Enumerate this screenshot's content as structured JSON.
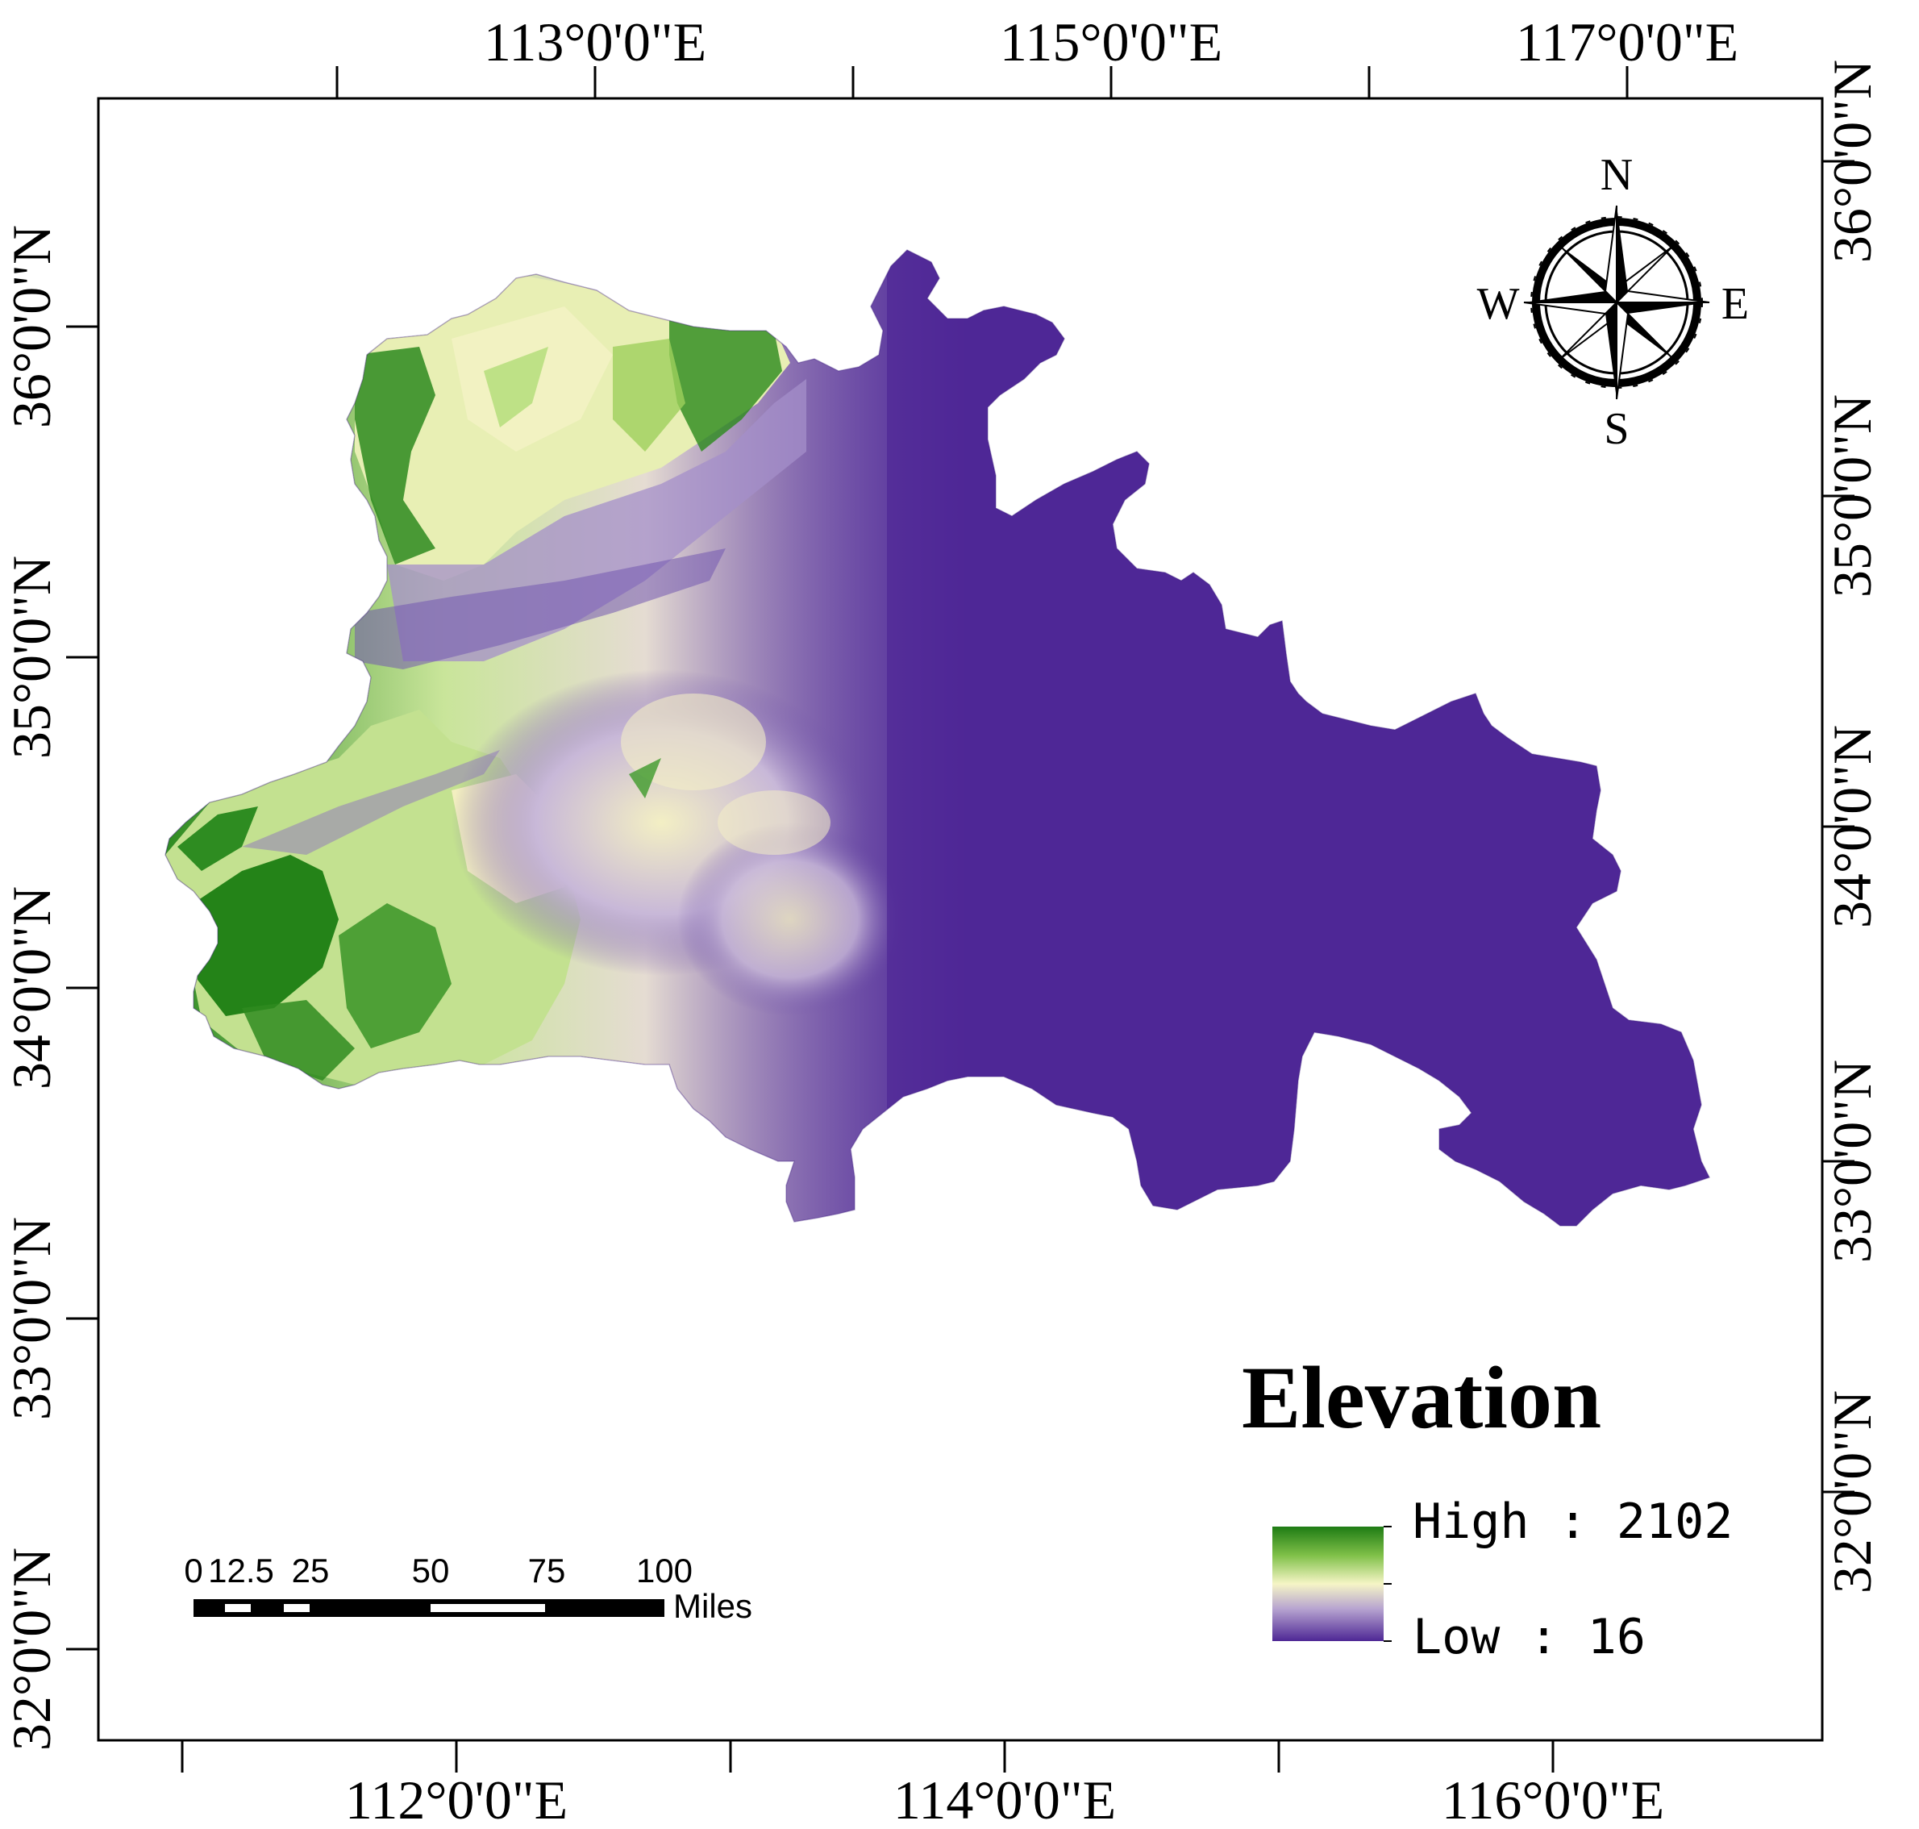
{
  "map": {
    "axis_labels": {
      "top": [
        "113°0'0\"E",
        "115°0'0\"E",
        "117°0'0\"E"
      ],
      "bottom": [
        "112°0'0\"E",
        "114°0'0\"E",
        "116°0'0\"E"
      ],
      "left": [
        "36°0'0\"N",
        "35°0'0\"N",
        "34°0'0\"N",
        "33°0'0\"N",
        "32°0'0\"N"
      ],
      "right": [
        "36°0'0\"N",
        "35°0'0\"N",
        "34°0'0\"N",
        "33°0'0\"N",
        "32°0'0\"N"
      ]
    },
    "compass": {
      "n": "N",
      "s": "S",
      "e": "E",
      "w": "W"
    },
    "legend": {
      "title": "Elevation",
      "high_label": "High : 2102",
      "low_label": "Low : 16",
      "ramp_colors": [
        "#1e7b14",
        "#f6f5c6",
        "#4e2795"
      ]
    },
    "scale_bar": {
      "ticks": [
        "0",
        "12.5",
        "25",
        "50",
        "75",
        "100"
      ],
      "unit": "Miles"
    },
    "colors": {
      "low": "#4e2796",
      "mid_low": "#9c86c2",
      "mid": "#f4f1c4",
      "high_mid": "#9bcf5c",
      "high": "#237d1a"
    }
  }
}
